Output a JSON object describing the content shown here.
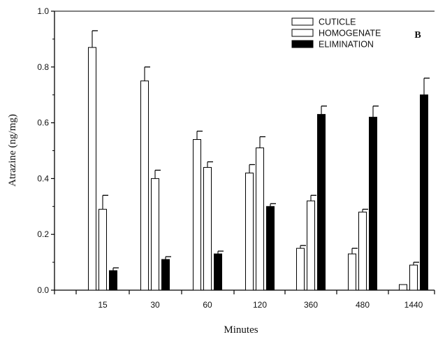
{
  "chart_data": {
    "type": "bar",
    "panel_label": "B",
    "xlabel": "Minutes",
    "ylabel": "Atrazine (ng/mg)",
    "ylim": [
      0.0,
      1.0
    ],
    "yticks": [
      "0.0",
      "0.2",
      "0.4",
      "0.6",
      "0.8",
      "1.0"
    ],
    "categories": [
      "15",
      "30",
      "60",
      "120",
      "360",
      "480",
      "1440"
    ],
    "legend_placement": "top-right",
    "series": [
      {
        "name": "CUTICLE",
        "fill": "#ffffff",
        "values": [
          0.87,
          0.75,
          0.54,
          0.42,
          0.15,
          0.13,
          0.02
        ],
        "errors": [
          0.06,
          0.05,
          0.03,
          0.03,
          0.01,
          0.02,
          0.0
        ]
      },
      {
        "name": "HOMOGENATE",
        "fill": "#ffffff",
        "values": [
          0.29,
          0.4,
          0.44,
          0.51,
          0.32,
          0.28,
          0.09
        ],
        "errors": [
          0.05,
          0.03,
          0.02,
          0.04,
          0.02,
          0.01,
          0.01
        ]
      },
      {
        "name": "ELIMINATION",
        "fill": "#000000",
        "values": [
          0.07,
          0.11,
          0.13,
          0.3,
          0.63,
          0.62,
          0.7
        ],
        "errors": [
          0.01,
          0.01,
          0.01,
          0.01,
          0.03,
          0.04,
          0.06
        ]
      }
    ],
    "colors": {
      "axis": "#000000",
      "bar_stroke": "#000000"
    }
  }
}
